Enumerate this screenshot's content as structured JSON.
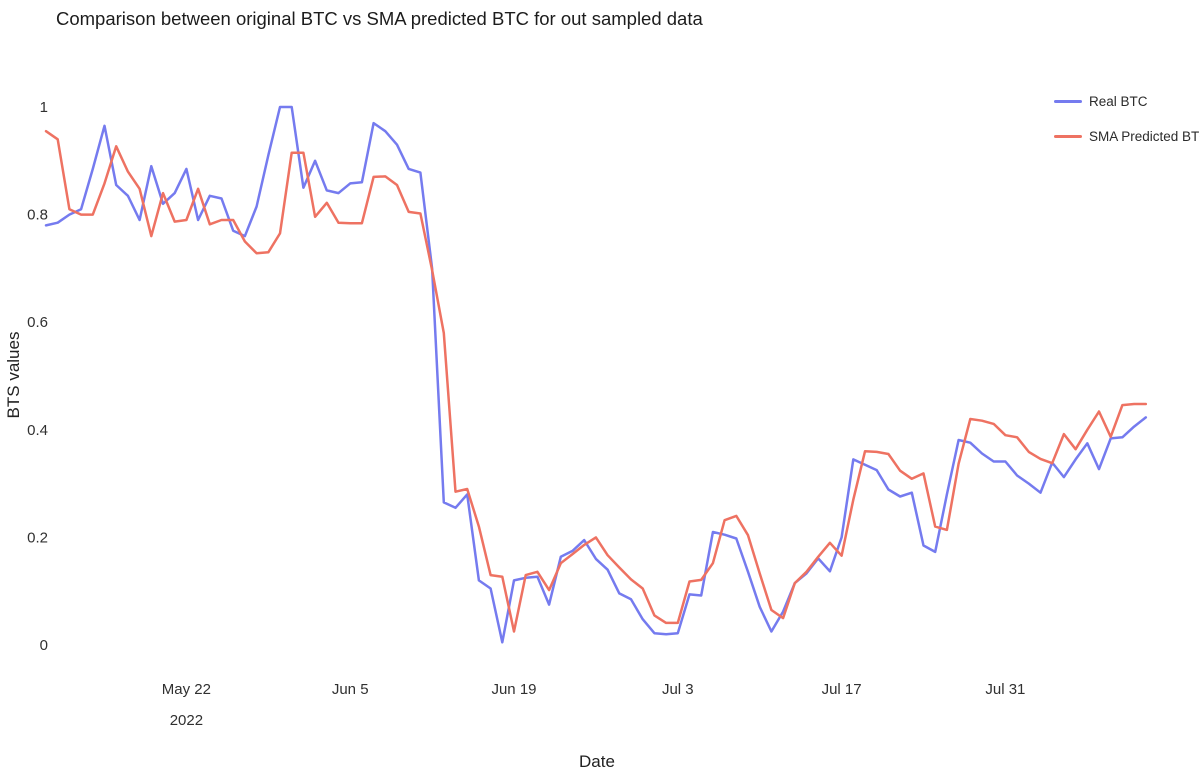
{
  "title": "Comparison between original BTC vs SMA predicted BTC for out sampled data",
  "axes": {
    "x_title": "Date",
    "y_title": "BTS values"
  },
  "chart_data": {
    "type": "line",
    "title": "Comparison between original BTC vs SMA predicted BTC for out sampled data",
    "xlabel": "Date",
    "ylabel": "BTS values",
    "x_start_date": "2022-05-10",
    "x_step_days": 1,
    "n_points": 95,
    "ylim": [
      0,
      1
    ],
    "grid": false,
    "legend_position": "top-right",
    "background": "#ffffff",
    "y_ticks": [
      {
        "value": 0,
        "label": "0"
      },
      {
        "value": 0.2,
        "label": "0.2"
      },
      {
        "value": 0.4,
        "label": "0.4"
      },
      {
        "value": 0.6,
        "label": "0.6"
      },
      {
        "value": 0.8,
        "label": "0.8"
      },
      {
        "value": 1,
        "label": "1"
      }
    ],
    "x_ticks": [
      {
        "index": 12,
        "label": "May 22",
        "sublabel": "2022"
      },
      {
        "index": 26,
        "label": "Jun 5"
      },
      {
        "index": 40,
        "label": "Jun 19"
      },
      {
        "index": 54,
        "label": "Jul 3"
      },
      {
        "index": 68,
        "label": "Jul 17"
      },
      {
        "index": 82,
        "label": "Jul 31"
      }
    ],
    "series": [
      {
        "name": "Real BTC",
        "color": "#757bef",
        "values": [
          0.78,
          0.785,
          0.8,
          0.81,
          0.885,
          0.965,
          0.855,
          0.835,
          0.79,
          0.89,
          0.82,
          0.84,
          0.885,
          0.79,
          0.835,
          0.83,
          0.77,
          0.76,
          0.815,
          0.91,
          1.0,
          1.0,
          0.85,
          0.9,
          0.845,
          0.84,
          0.858,
          0.86,
          0.97,
          0.955,
          0.93,
          0.885,
          0.878,
          0.7,
          0.265,
          0.255,
          0.28,
          0.12,
          0.105,
          0.005,
          0.12,
          0.125,
          0.127,
          0.075,
          0.164,
          0.175,
          0.195,
          0.16,
          0.14,
          0.096,
          0.085,
          0.048,
          0.022,
          0.02,
          0.022,
          0.094,
          0.092,
          0.21,
          0.205,
          0.198,
          0.136,
          0.071,
          0.025,
          0.062,
          0.115,
          0.133,
          0.161,
          0.137,
          0.2,
          0.345,
          0.335,
          0.325,
          0.289,
          0.276,
          0.283,
          0.185,
          0.173,
          0.28,
          0.381,
          0.376,
          0.356,
          0.341,
          0.341,
          0.315,
          0.3,
          0.283,
          0.339,
          0.312,
          0.345,
          0.375,
          0.327,
          0.384,
          0.386,
          0.406,
          0.423
        ]
      },
      {
        "name": "SMA Predicted BTC",
        "color": "#ee7262",
        "values": [
          0.955,
          0.94,
          0.81,
          0.8,
          0.8,
          0.858,
          0.927,
          0.88,
          0.848,
          0.76,
          0.84,
          0.787,
          0.79,
          0.848,
          0.782,
          0.79,
          0.79,
          0.75,
          0.728,
          0.73,
          0.765,
          0.915,
          0.915,
          0.796,
          0.822,
          0.785,
          0.784,
          0.784,
          0.87,
          0.871,
          0.855,
          0.805,
          0.802,
          0.697,
          0.58,
          0.285,
          0.29,
          0.22,
          0.13,
          0.127,
          0.025,
          0.13,
          0.136,
          0.102,
          0.152,
          0.169,
          0.186,
          0.2,
          0.167,
          0.144,
          0.122,
          0.105,
          0.055,
          0.041,
          0.041,
          0.118,
          0.121,
          0.152,
          0.232,
          0.24,
          0.204,
          0.133,
          0.065,
          0.05,
          0.115,
          0.136,
          0.164,
          0.19,
          0.166,
          0.27,
          0.36,
          0.359,
          0.355,
          0.324,
          0.309,
          0.319,
          0.22,
          0.214,
          0.337,
          0.42,
          0.417,
          0.411,
          0.39,
          0.386,
          0.359,
          0.346,
          0.338,
          0.392,
          0.364,
          0.4,
          0.434,
          0.387,
          0.446,
          0.448,
          0.448
        ]
      }
    ]
  }
}
